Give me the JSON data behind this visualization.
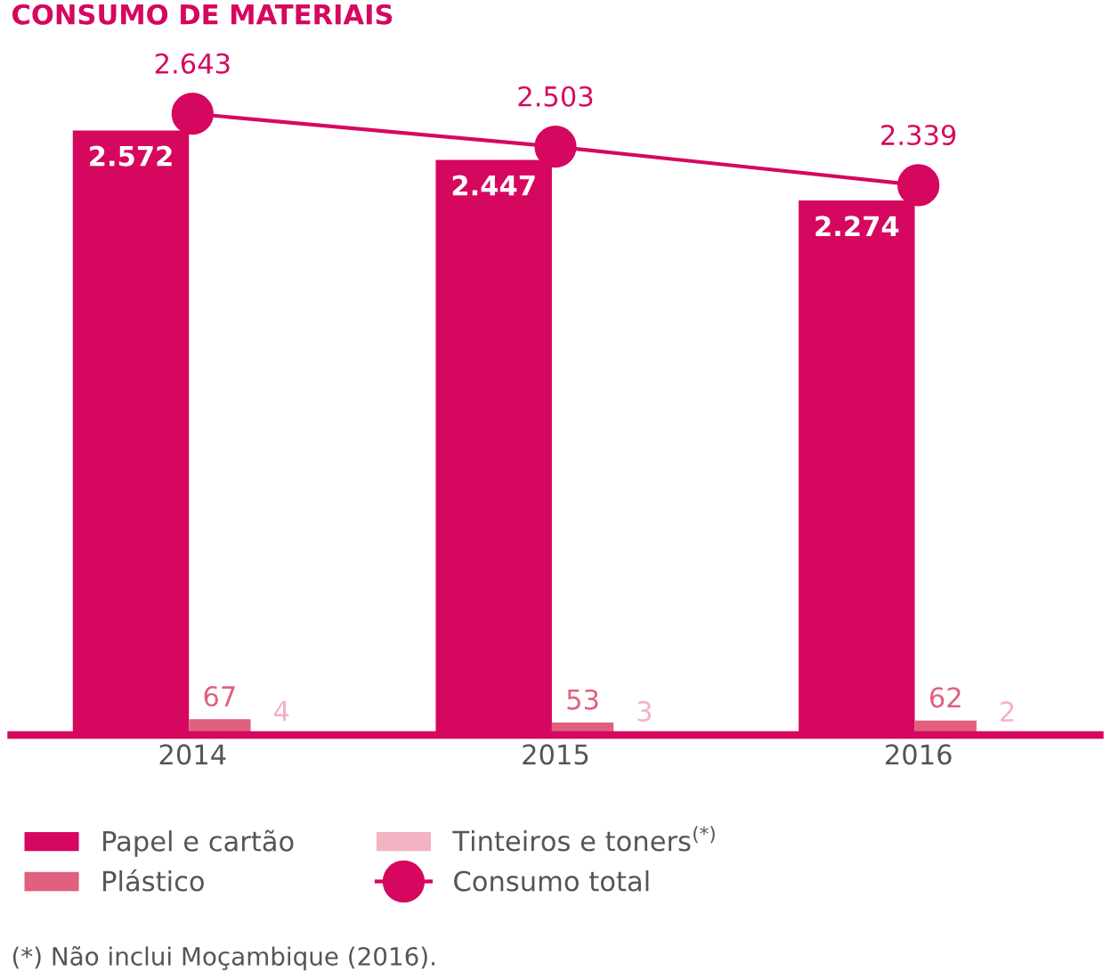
{
  "chart_data": {
    "type": "bar",
    "title": "CONSUMO DE MATERIAIS",
    "categories": [
      "2014",
      "2015",
      "2016"
    ],
    "series": [
      {
        "name": "Papel e cartão",
        "color": "#d6075f",
        "values": [
          2572,
          2447,
          2274
        ],
        "value_labels": [
          "2.572",
          "2.447",
          "2.274"
        ]
      },
      {
        "name": "Plástico",
        "color": "#e0607e",
        "values": [
          67,
          53,
          62
        ],
        "value_labels": [
          "67",
          "53",
          "62"
        ]
      },
      {
        "name": "Tinteiros e toners$^{(*)}$",
        "color": "#f2b3c3",
        "values": [
          4,
          3,
          2
        ],
        "value_labels": [
          "4",
          "3",
          "2"
        ]
      },
      {
        "name": "Consumo total",
        "color": "#d6075f",
        "type": "line",
        "marker": "circle",
        "values": [
          2643,
          2503,
          2339
        ],
        "value_labels": [
          "2.643",
          "2.503",
          "2.339"
        ]
      }
    ],
    "legend": "bottom",
    "grid": false,
    "annotations": [
      "(*) Não inclui Moçambique (2016)."
    ]
  }
}
